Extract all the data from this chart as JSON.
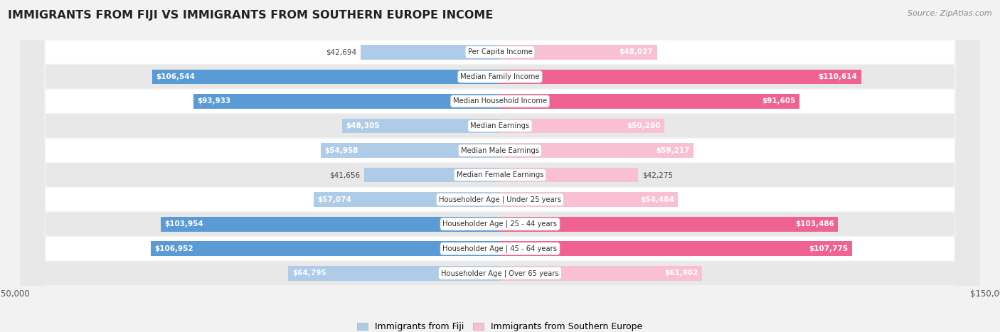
{
  "title": "IMMIGRANTS FROM FIJI VS IMMIGRANTS FROM SOUTHERN EUROPE INCOME",
  "source": "Source: ZipAtlas.com",
  "categories": [
    "Per Capita Income",
    "Median Family Income",
    "Median Household Income",
    "Median Earnings",
    "Median Male Earnings",
    "Median Female Earnings",
    "Householder Age | Under 25 years",
    "Householder Age | 25 - 44 years",
    "Householder Age | 45 - 64 years",
    "Householder Age | Over 65 years"
  ],
  "fiji_values": [
    42694,
    106544,
    93933,
    48305,
    54958,
    41656,
    57074,
    103954,
    106952,
    64795
  ],
  "southern_europe_values": [
    48027,
    110614,
    91605,
    50280,
    59217,
    42275,
    54484,
    103486,
    107775,
    61902
  ],
  "fiji_labels": [
    "$42,694",
    "$106,544",
    "$93,933",
    "$48,305",
    "$54,958",
    "$41,656",
    "$57,074",
    "$103,954",
    "$106,952",
    "$64,795"
  ],
  "southern_europe_labels": [
    "$48,027",
    "$110,614",
    "$91,605",
    "$50,280",
    "$59,217",
    "$42,275",
    "$54,484",
    "$103,486",
    "$107,775",
    "$61,902"
  ],
  "fiji_color_light": "#aecce8",
  "fiji_color_dark": "#5b9bd5",
  "se_color_light": "#f9c0d4",
  "se_color_dark": "#f06292",
  "threshold": 70000,
  "max_value": 150000,
  "legend_fiji": "Immigrants from Fiji",
  "legend_southern": "Immigrants from Southern Europe"
}
